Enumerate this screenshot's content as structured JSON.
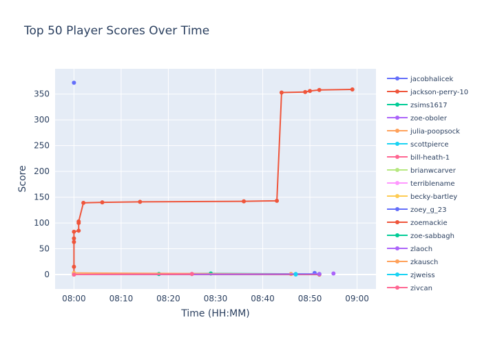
{
  "chart_data": {
    "type": "line",
    "title": "Top 50 Player Scores Over Time",
    "x_label": "Time (HH:MM)",
    "y_label": "Score",
    "xlim": [
      "07:56",
      "09:04"
    ],
    "ylim": [
      -28,
      399
    ],
    "xticks": [
      "08:00",
      "08:10",
      "08:20",
      "08:30",
      "08:40",
      "08:50",
      "09:00"
    ],
    "yticks": [
      0,
      50,
      100,
      150,
      200,
      250,
      300,
      350
    ],
    "grid": true,
    "legend": "right",
    "series": [
      {
        "name": "jacobhalicek",
        "color": "#636efa",
        "x": [
          "08:00"
        ],
        "values": [
          372
        ]
      },
      {
        "name": "jackson-perry-10",
        "color": "#EF553B",
        "x": [
          "08:00",
          "08:00",
          "08:00",
          "08:00",
          "08:00",
          "08:01",
          "08:01",
          "08:01",
          "08:02",
          "08:06",
          "08:14",
          "08:36",
          "08:43",
          "08:44",
          "08:49",
          "08:50",
          "08:52",
          "08:59"
        ],
        "values": [
          0,
          15,
          63,
          70,
          83,
          85,
          100,
          103,
          139,
          140,
          141,
          142,
          143,
          353,
          354,
          356,
          358,
          359
        ]
      },
      {
        "name": "zsims1617",
        "color": "#00cc96",
        "x": [
          "08:18",
          "08:29",
          "08:52"
        ],
        "values": [
          1,
          2,
          1
        ]
      },
      {
        "name": "zoe-oboler",
        "color": "#ab63fa",
        "x": [
          "08:55"
        ],
        "values": [
          2
        ]
      },
      {
        "name": "julia-poopsock",
        "color": "#FFA15A",
        "x": [
          "08:00",
          "08:46"
        ],
        "values": [
          3,
          1
        ]
      },
      {
        "name": "scottpierce",
        "color": "#19d3f3",
        "x": [
          "08:47"
        ],
        "values": [
          1
        ]
      },
      {
        "name": "bill-heath-1",
        "color": "#FF6692",
        "x": [
          "08:25"
        ],
        "values": [
          1
        ]
      },
      {
        "name": "brianwcarver",
        "color": "#B6E880",
        "x": [
          "08:00"
        ],
        "values": [
          1
        ]
      },
      {
        "name": "terriblename",
        "color": "#FF97FF",
        "x": [
          "08:00"
        ],
        "values": [
          0
        ]
      },
      {
        "name": "becky-bartley",
        "color": "#FECB52",
        "x": [
          "08:00"
        ],
        "values": [
          2
        ]
      },
      {
        "name": "zoey_g_23",
        "color": "#636efa",
        "x": [
          "08:51"
        ],
        "values": [
          3
        ]
      },
      {
        "name": "zoemackie",
        "color": "#EF553B",
        "x": [
          "08:00",
          "08:52"
        ],
        "values": [
          0,
          0
        ]
      },
      {
        "name": "zoe-sabbagh",
        "color": "#00cc96",
        "x": [
          "08:00"
        ],
        "values": [
          0
        ]
      },
      {
        "name": "zlaoch",
        "color": "#ab63fa",
        "x": [
          "08:00",
          "08:52"
        ],
        "values": [
          0,
          1
        ]
      },
      {
        "name": "zkausch",
        "color": "#FFA15A",
        "x": [
          "08:00"
        ],
        "values": [
          0
        ]
      },
      {
        "name": "zjweiss",
        "color": "#19d3f3",
        "x": [
          "08:47"
        ],
        "values": [
          0
        ]
      },
      {
        "name": "ziycan",
        "color": "#FF6692",
        "x": [
          "08:00",
          "08:25"
        ],
        "values": [
          0,
          1
        ]
      }
    ]
  }
}
